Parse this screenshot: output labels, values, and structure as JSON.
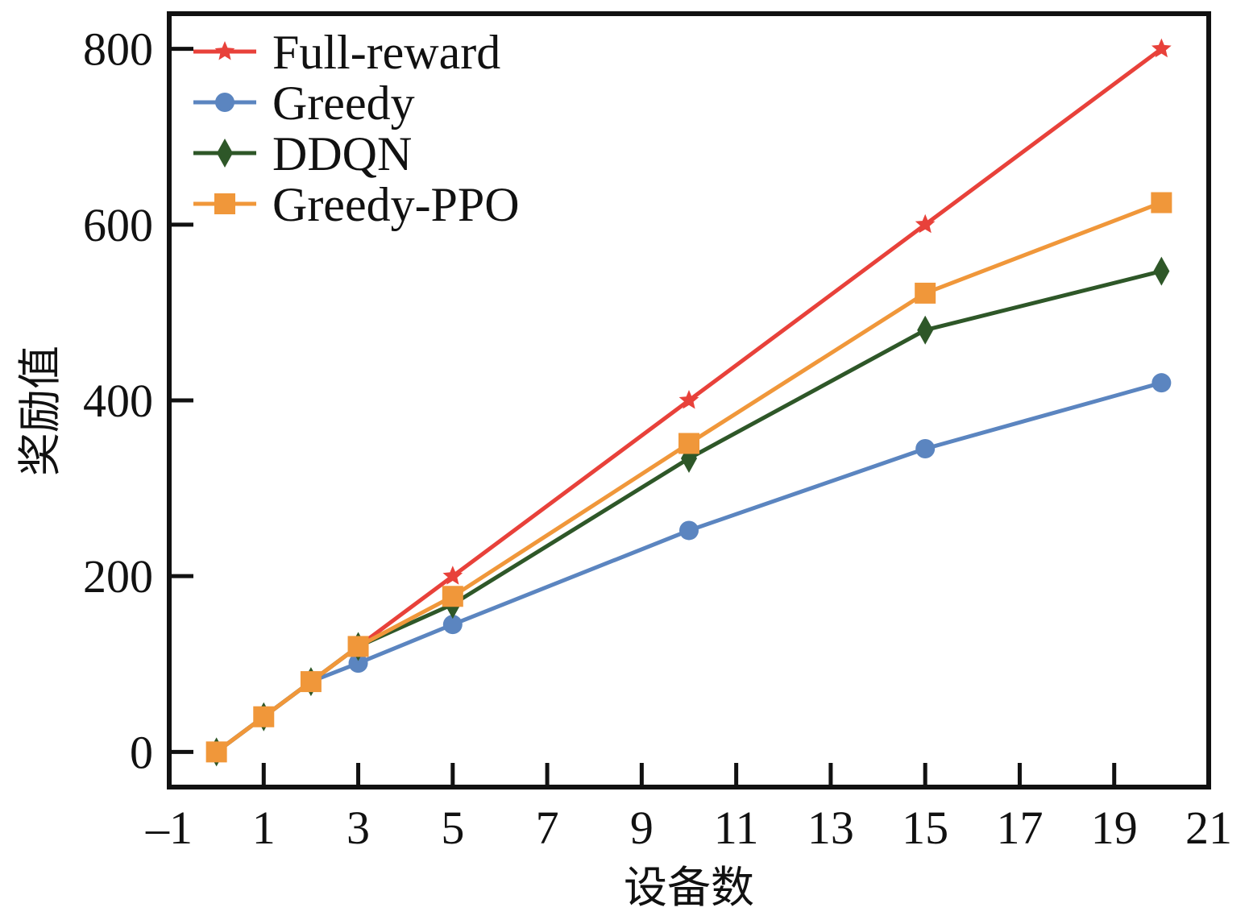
{
  "chart_data": {
    "type": "line",
    "title": "",
    "xlabel": "设备数",
    "ylabel": "奖励值",
    "xlim": [
      -1,
      21
    ],
    "ylim": [
      -40,
      840
    ],
    "xticks": [
      -1,
      1,
      3,
      5,
      7,
      9,
      11,
      13,
      15,
      17,
      19,
      21
    ],
    "xtick_labels": [
      "–1",
      "1",
      "3",
      "5",
      "7",
      "9",
      "11",
      "13",
      "15",
      "17",
      "19",
      "21"
    ],
    "yticks": [
      0,
      200,
      400,
      600,
      800
    ],
    "ytick_labels": [
      "0",
      "200",
      "400",
      "600",
      "800"
    ],
    "grid": false,
    "legend_position": "top-left",
    "x": [
      0,
      1,
      2,
      3,
      5,
      10,
      15,
      20
    ],
    "series": [
      {
        "name": "Full-reward",
        "color": "#e8413a",
        "marker": "star",
        "values": [
          0,
          40,
          80,
          120,
          200,
          400,
          600,
          800
        ]
      },
      {
        "name": "Greedy",
        "color": "#5b85c0",
        "marker": "circle",
        "values": [
          0,
          40,
          80,
          101,
          145,
          252,
          345,
          420
        ]
      },
      {
        "name": "DDQN",
        "color": "#2e5728",
        "marker": "diamond",
        "values": [
          0,
          40,
          80,
          120,
          168,
          334,
          480,
          547
        ]
      },
      {
        "name": "Greedy-PPO",
        "color": "#f0973a",
        "marker": "square",
        "values": [
          0,
          40,
          80,
          120,
          177,
          351,
          522,
          625
        ]
      }
    ]
  }
}
